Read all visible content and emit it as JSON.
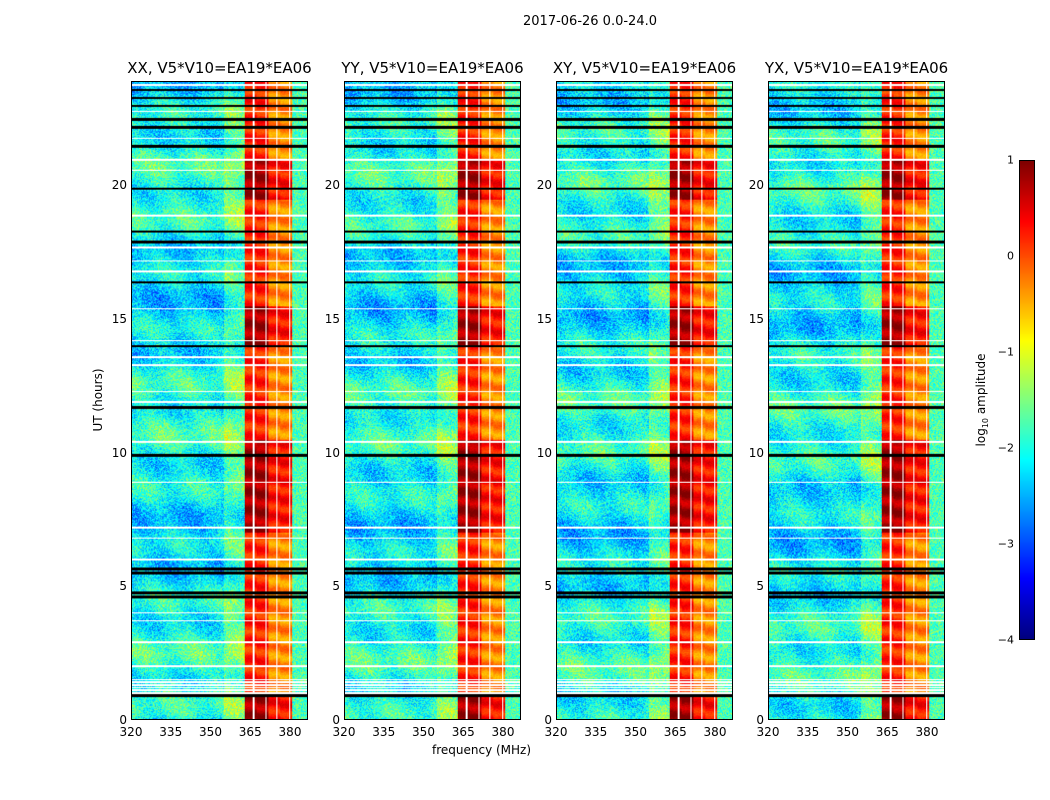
{
  "chart_data": {
    "type": "heatmap",
    "title": "2017-06-26 0.0-24.0",
    "xlabel": "frequency (MHz)",
    "ylabel": "UT (hours)",
    "xlim": [
      320,
      387
    ],
    "ylim": [
      0,
      24
    ],
    "xticks": [
      "320",
      "335",
      "350",
      "365",
      "380"
    ],
    "yticks": [
      "0",
      "5",
      "10",
      "15",
      "20"
    ],
    "panels": [
      {
        "title": "XX, V5*V10=EA19*EA06"
      },
      {
        "title": "YY, V5*V10=EA19*EA06"
      },
      {
        "title": "XY, V5*V10=EA19*EA06"
      },
      {
        "title": "YX, V5*V10=EA19*EA06"
      }
    ],
    "rfi_band_mhz": [
      363,
      381
    ],
    "colorbar": {
      "label_main": "log",
      "label_sub": "10",
      "label_rest": " amplitude",
      "range": [
        -4,
        1
      ],
      "ticks": [
        "1",
        "0",
        "−1",
        "−2",
        "−3",
        "−4"
      ],
      "colormap": "jet"
    }
  }
}
